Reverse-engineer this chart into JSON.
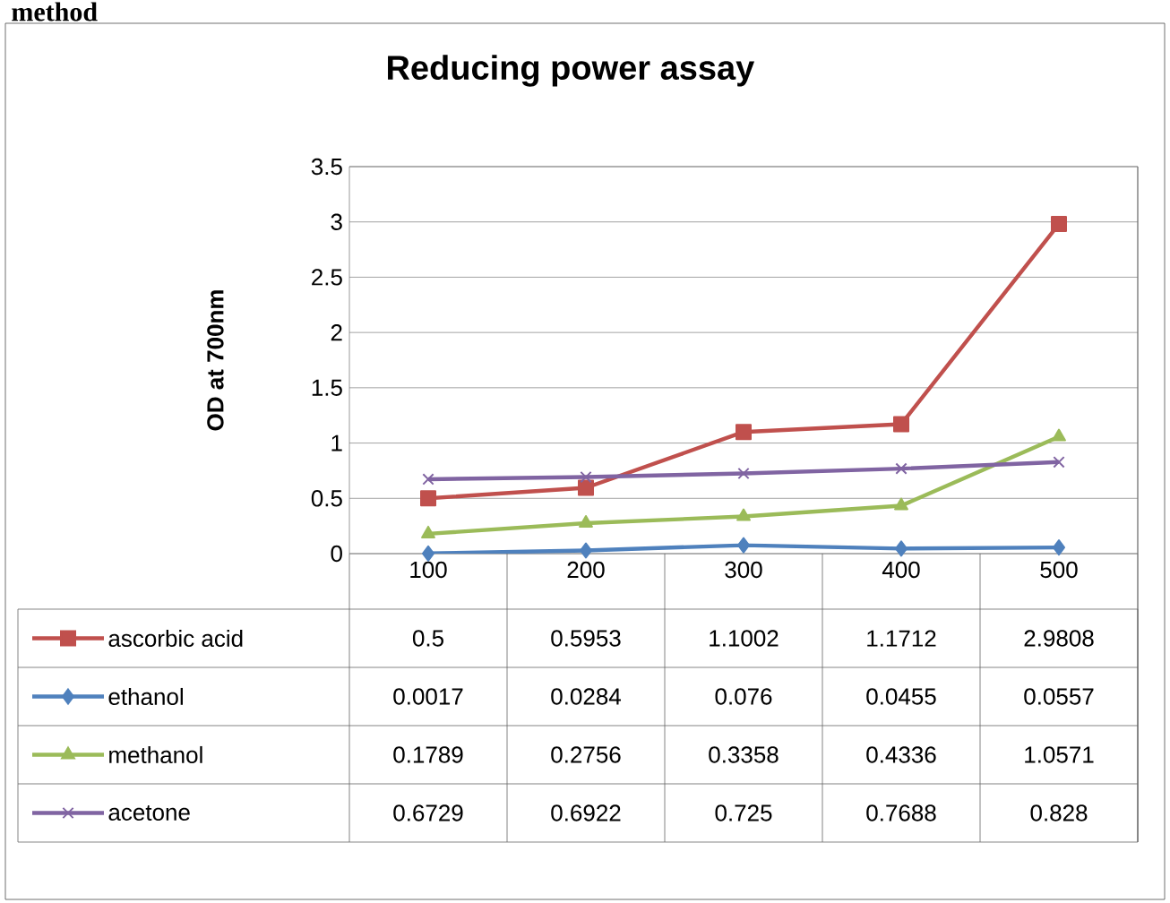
{
  "chart_data": {
    "type": "line",
    "title": "Reducing power assay",
    "ylabel": "OD at 700nm",
    "annotations": [
      "method"
    ],
    "categories": [
      "100",
      "200",
      "300",
      "400",
      "500"
    ],
    "series": [
      {
        "name": "ascorbic acid",
        "color": "#c0504d",
        "marker": "square",
        "values": [
          0.5,
          0.5953,
          1.1002,
          1.1712,
          2.9808
        ]
      },
      {
        "name": "ethanol",
        "color": "#4f81bd",
        "marker": "diamond",
        "values": [
          0.0017,
          0.0284,
          0.076,
          0.0455,
          0.0557
        ]
      },
      {
        "name": "methanol",
        "color": "#9bbb59",
        "marker": "triangle",
        "values": [
          0.1789,
          0.2756,
          0.3358,
          0.4336,
          1.0571
        ]
      },
      {
        "name": "acetone",
        "color": "#8064a2",
        "marker": "cross",
        "values": [
          0.6729,
          0.6922,
          0.725,
          0.7688,
          0.828
        ]
      }
    ],
    "ylim": [
      0,
      3.5
    ],
    "yticks": [
      0,
      0.5,
      1,
      1.5,
      2,
      2.5,
      3,
      3.5
    ],
    "grid": "y",
    "legend": "bottom",
    "data_labels": true,
    "line_style": "solid"
  }
}
